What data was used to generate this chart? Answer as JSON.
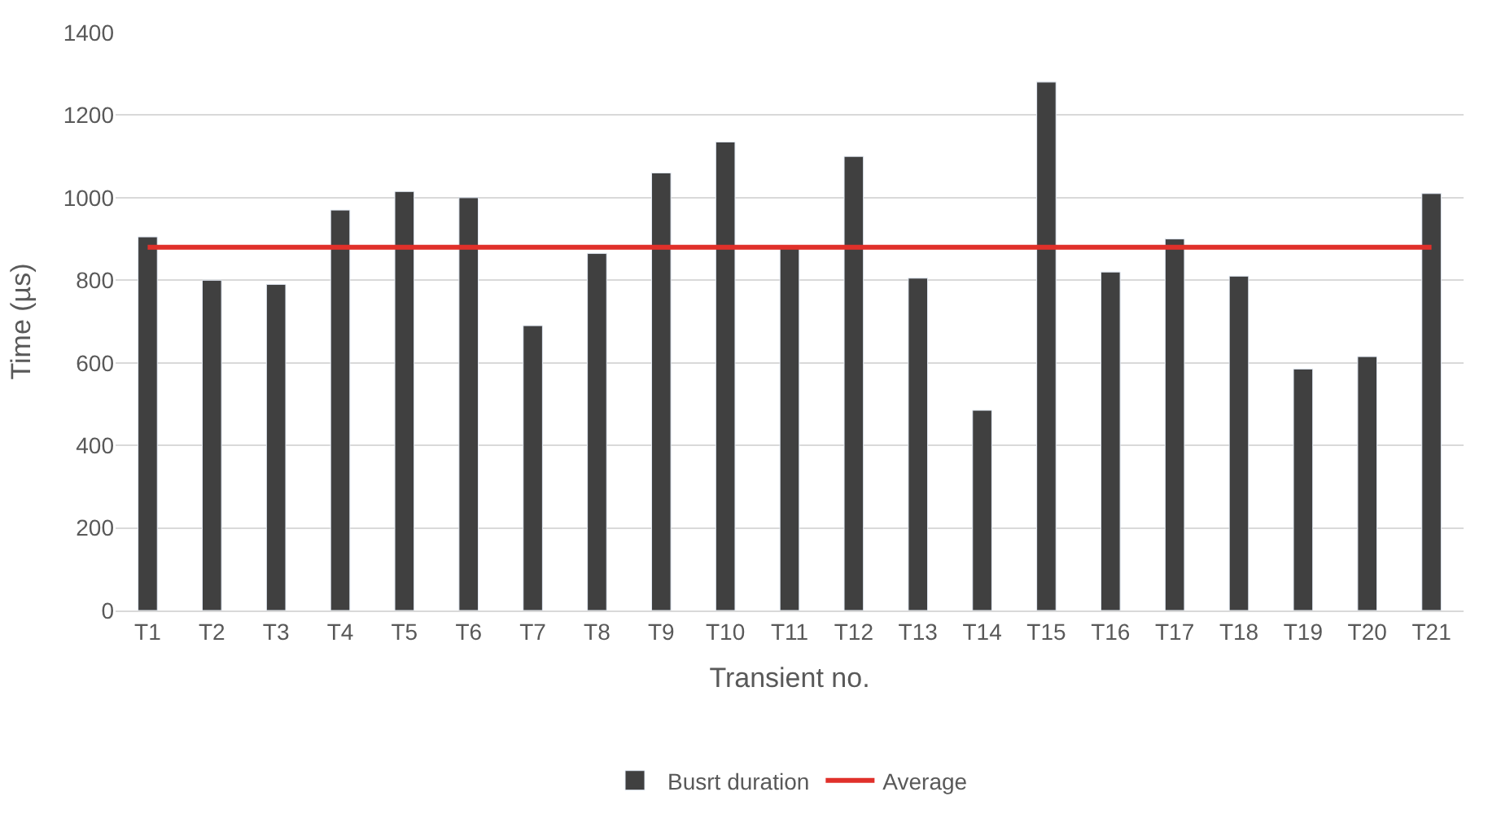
{
  "chart_data": {
    "type": "bar",
    "xlabel": "Transient no.",
    "ylabel": "Time (µs)",
    "categories": [
      "T1",
      "T2",
      "T3",
      "T4",
      "T5",
      "T6",
      "T7",
      "T8",
      "T9",
      "T10",
      "T11",
      "T12",
      "T13",
      "T14",
      "T15",
      "T16",
      "T17",
      "T18",
      "T19",
      "T20",
      "T21"
    ],
    "series": [
      {
        "name": "Busrt duration",
        "color": "#404040",
        "values": [
          905,
          800,
          790,
          970,
          1015,
          1000,
          690,
          865,
          1060,
          1135,
          880,
          1100,
          805,
          485,
          1280,
          820,
          900,
          810,
          585,
          615,
          1010
        ]
      },
      {
        "name": "Average",
        "color": "#e0302a",
        "type": "line",
        "values": [
          880,
          880,
          880,
          880,
          880,
          880,
          880,
          880,
          880,
          880,
          880,
          880,
          880,
          880,
          880,
          880,
          880,
          880,
          880,
          880,
          880
        ]
      }
    ],
    "ylim": [
      0,
      1400
    ],
    "yticks": [
      0,
      200,
      400,
      600,
      800,
      1000,
      1200,
      1400
    ],
    "grid": "y",
    "legend": "bottom",
    "marker": "none",
    "line_style": "solid"
  }
}
